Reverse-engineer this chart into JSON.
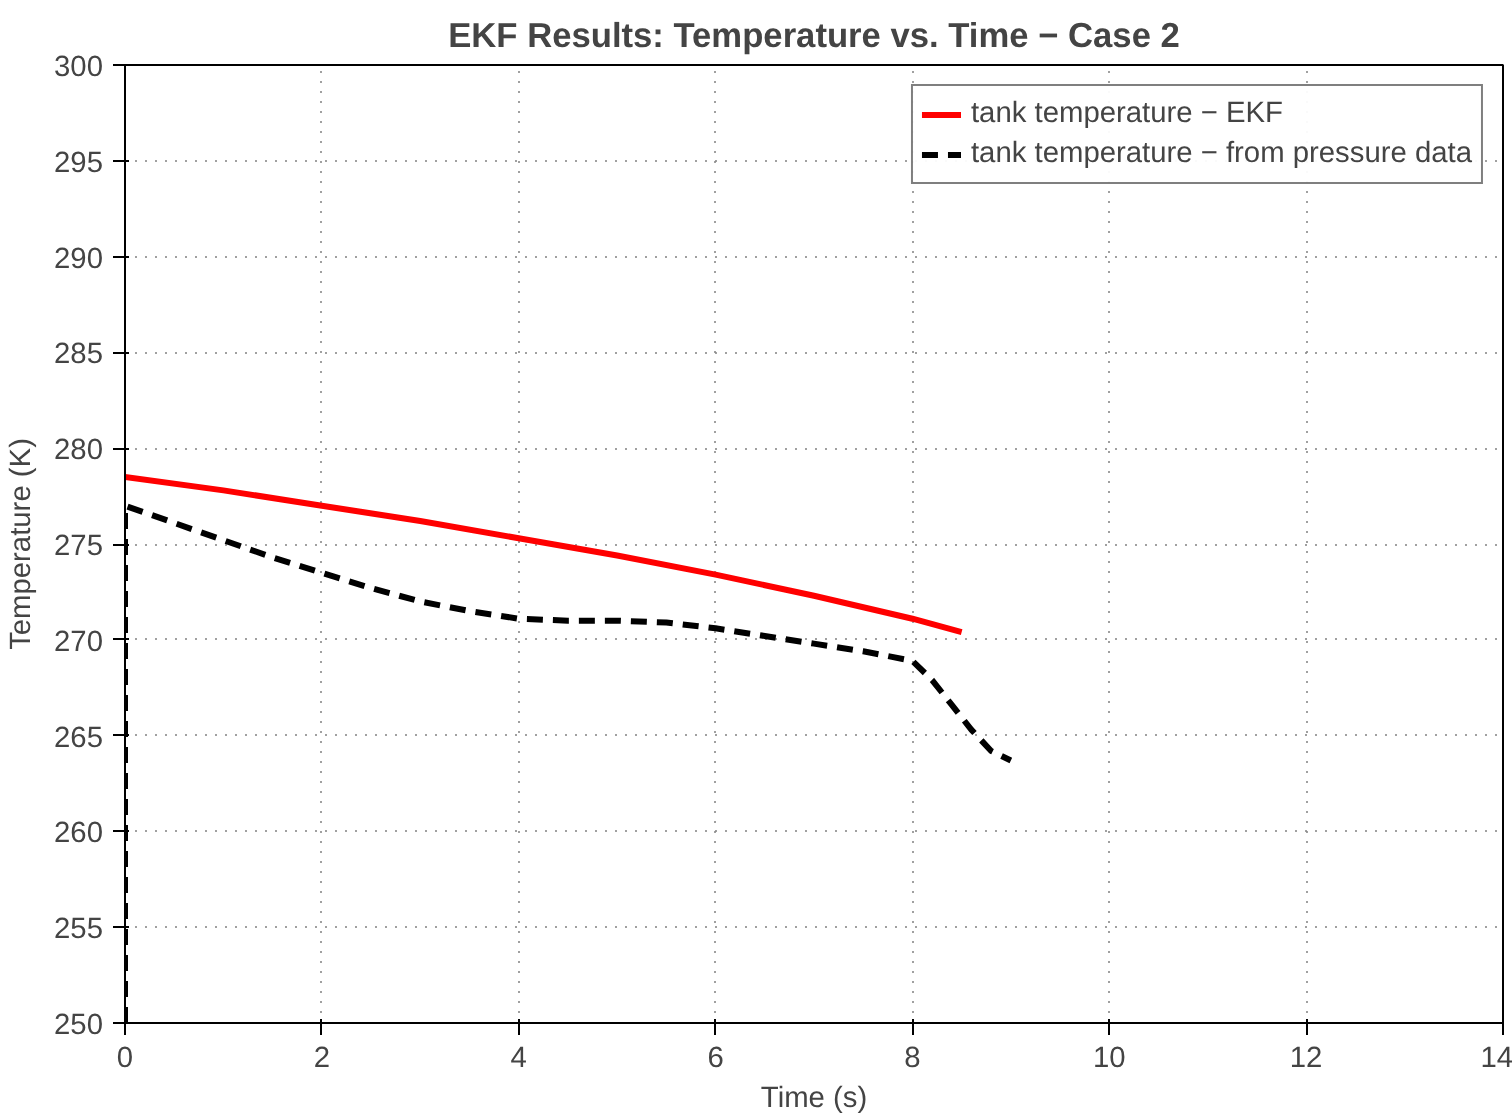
{
  "chart_data": {
    "type": "line",
    "title": "EKF Results: Temperature vs. Time − Case 2",
    "xlabel": "Time (s)",
    "ylabel": "Temperature (K)",
    "xlim": [
      0,
      14
    ],
    "ylim": [
      250,
      300
    ],
    "xticks": [
      0,
      2,
      4,
      6,
      8,
      10,
      12,
      14
    ],
    "yticks": [
      250,
      255,
      260,
      265,
      270,
      275,
      280,
      285,
      290,
      295,
      300
    ],
    "grid": true,
    "legend": "top right",
    "series": [
      {
        "name": "tank temperature − EKF",
        "color": "#ff0000",
        "line_style": "solid",
        "x": [
          0,
          1,
          2,
          3,
          4,
          5,
          6,
          7,
          8,
          8.5
        ],
        "values": [
          278.5,
          277.8,
          277.0,
          276.2,
          275.3,
          274.4,
          273.4,
          272.3,
          271.1,
          270.4
        ]
      },
      {
        "name": "tank temperature − from pressure data",
        "color": "#000000",
        "line_style": "dashed",
        "x": [
          0,
          0,
          0.5,
          1,
          1.5,
          2,
          2.5,
          3,
          3.5,
          4,
          4.5,
          5,
          5.5,
          6,
          6.5,
          7,
          7.5,
          8,
          8.2,
          8.4,
          8.6,
          8.8,
          9
        ],
        "values": [
          250,
          277.0,
          276.1,
          275.2,
          274.3,
          273.5,
          272.7,
          272.0,
          271.5,
          271.1,
          271.0,
          271.0,
          270.9,
          270.6,
          270.2,
          269.8,
          269.4,
          268.9,
          267.9,
          266.6,
          265.3,
          264.2,
          263.7
        ]
      }
    ]
  }
}
